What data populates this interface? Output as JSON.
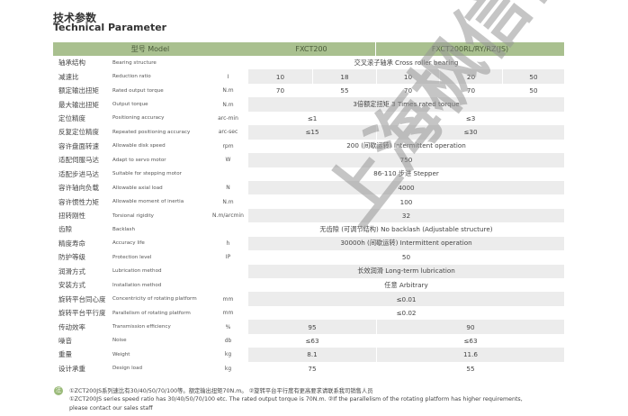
{
  "title_cn": "技术参数",
  "title_en": "Technical Parameter",
  "header": {
    "model": "型号 Model",
    "col1": "FXCT200",
    "col2": "FXCT200RL/RY/RZ(JS)"
  },
  "rows": [
    {
      "cn": "轴承结构",
      "en": "Bearing structure",
      "unit": "",
      "values": [
        {
          "v": "交叉滚子轴承 Cross roller bearing",
          "span": 5
        }
      ]
    },
    {
      "cn": "减速比",
      "en": "Reduction ratio",
      "unit": "I",
      "values": [
        {
          "v": "10",
          "span": 1
        },
        {
          "v": "18",
          "span": 1
        },
        {
          "v": "10",
          "span": 1
        },
        {
          "v": "20",
          "span": 1
        },
        {
          "v": "50",
          "span": 1
        }
      ]
    },
    {
      "cn": "额定输出扭矩",
      "en": "Rated output torque",
      "unit": "N.m",
      "values": [
        {
          "v": "70",
          "span": 1
        },
        {
          "v": "55",
          "span": 1
        },
        {
          "v": "70",
          "span": 1
        },
        {
          "v": "70",
          "span": 1
        },
        {
          "v": "50",
          "span": 1
        }
      ]
    },
    {
      "cn": "最大输出扭矩",
      "en": "Output torque",
      "unit": "N.m",
      "values": [
        {
          "v": "3倍额定扭矩 3 Times rated torque",
          "span": 5
        }
      ]
    },
    {
      "cn": "定位精度",
      "en": "Positioning accuracy",
      "unit": "arc-min",
      "values": [
        {
          "v": "≤1",
          "span": 2
        },
        {
          "v": "≤3",
          "span": 3
        }
      ]
    },
    {
      "cn": "反复定位精度",
      "en": "Repeated positioning accuracy",
      "unit": "arc-sec",
      "values": [
        {
          "v": "≤15",
          "span": 2
        },
        {
          "v": "≤30",
          "span": 3
        }
      ]
    },
    {
      "cn": "容许盘面转速",
      "en": "Allowable disk speed",
      "unit": "rpm",
      "values": [
        {
          "v": "200 (间歇运转) Intermittent operation",
          "span": 5
        }
      ]
    },
    {
      "cn": "适配伺服马达",
      "en": "Adapt to servo motor",
      "unit": "W",
      "values": [
        {
          "v": "750",
          "span": 5
        }
      ]
    },
    {
      "cn": "适配步进马达",
      "en": "Suitable for stepping motor",
      "unit": "",
      "values": [
        {
          "v": "86-110 步进 Stepper",
          "span": 5
        }
      ]
    },
    {
      "cn": "容许轴向负载",
      "en": "Allowable axial load",
      "unit": "N",
      "values": [
        {
          "v": "4000",
          "span": 5
        }
      ]
    },
    {
      "cn": "容许惯性力矩",
      "en": "Allowable moment of inertia",
      "unit": "N.m",
      "values": [
        {
          "v": "100",
          "span": 5
        }
      ]
    },
    {
      "cn": "扭转刚性",
      "en": "Torsional rigidity",
      "unit": "N.m/arcmin",
      "values": [
        {
          "v": "32",
          "span": 5
        }
      ]
    },
    {
      "cn": "齿隙",
      "en": "Backlash",
      "unit": "",
      "values": [
        {
          "v": "无齿隙 (可调节结构) No backlash (Adjustable structure)",
          "span": 5
        }
      ]
    },
    {
      "cn": "精度寿命",
      "en": "Accuracy life",
      "unit": "h",
      "values": [
        {
          "v": "30000h (间歇运转) Intermittent operation",
          "span": 5
        }
      ]
    },
    {
      "cn": "防护等级",
      "en": "Protection level",
      "unit": "IP",
      "values": [
        {
          "v": "50",
          "span": 5
        }
      ]
    },
    {
      "cn": "润滑方式",
      "en": "Lubrication method",
      "unit": "",
      "values": [
        {
          "v": "长效润滑 Long-term lubrication",
          "span": 5
        }
      ]
    },
    {
      "cn": "安装方式",
      "en": "Installation method",
      "unit": "",
      "values": [
        {
          "v": "任意 Arbitrary",
          "span": 5
        }
      ]
    },
    {
      "cn": "旋转平台同心度",
      "en": "Concentricity of rotating platform",
      "unit": "mm",
      "values": [
        {
          "v": "≤0.01",
          "span": 5
        }
      ]
    },
    {
      "cn": "旋转平台平行度",
      "en": "Parallelism of rotating platform",
      "unit": "mm",
      "values": [
        {
          "v": "≤0.02",
          "span": 5
        }
      ]
    },
    {
      "cn": "传动效率",
      "en": "Transmission efficiency",
      "unit": "%",
      "values": [
        {
          "v": "95",
          "span": 2
        },
        {
          "v": "90",
          "span": 3
        }
      ]
    },
    {
      "cn": "噪音",
      "en": "Noise",
      "unit": "db",
      "values": [
        {
          "v": "≤63",
          "span": 2
        },
        {
          "v": "≤63",
          "span": 3
        }
      ]
    },
    {
      "cn": "重量",
      "en": "Weight",
      "unit": "kg",
      "values": [
        {
          "v": "8.1",
          "span": 2
        },
        {
          "v": "11.6",
          "span": 3
        }
      ]
    },
    {
      "cn": "设计承重",
      "en": "Design load",
      "unit": "kg",
      "values": [
        {
          "v": "75",
          "span": 2
        },
        {
          "v": "55",
          "span": 3
        }
      ]
    }
  ],
  "notes": {
    "icon": "注",
    "line1": "①ZCT200JS系列速比有30/40/50/70/100等。额定输出扭矩70N.m。 ②旋转平台平行度有更高要求请联系我司销售人员",
    "line2": "①ZCT200JS series speed ratio has 30/40/50/70/100 etc. The rated output torque is 70N.m. ②If the parallelism of the rotating platform has higher requirements,",
    "line3": "please contact our sales staff"
  },
  "watermark": "上海枫信传动",
  "colors": {
    "header_bg": "#a9c08f",
    "alt_row_bg": "#ececec"
  }
}
